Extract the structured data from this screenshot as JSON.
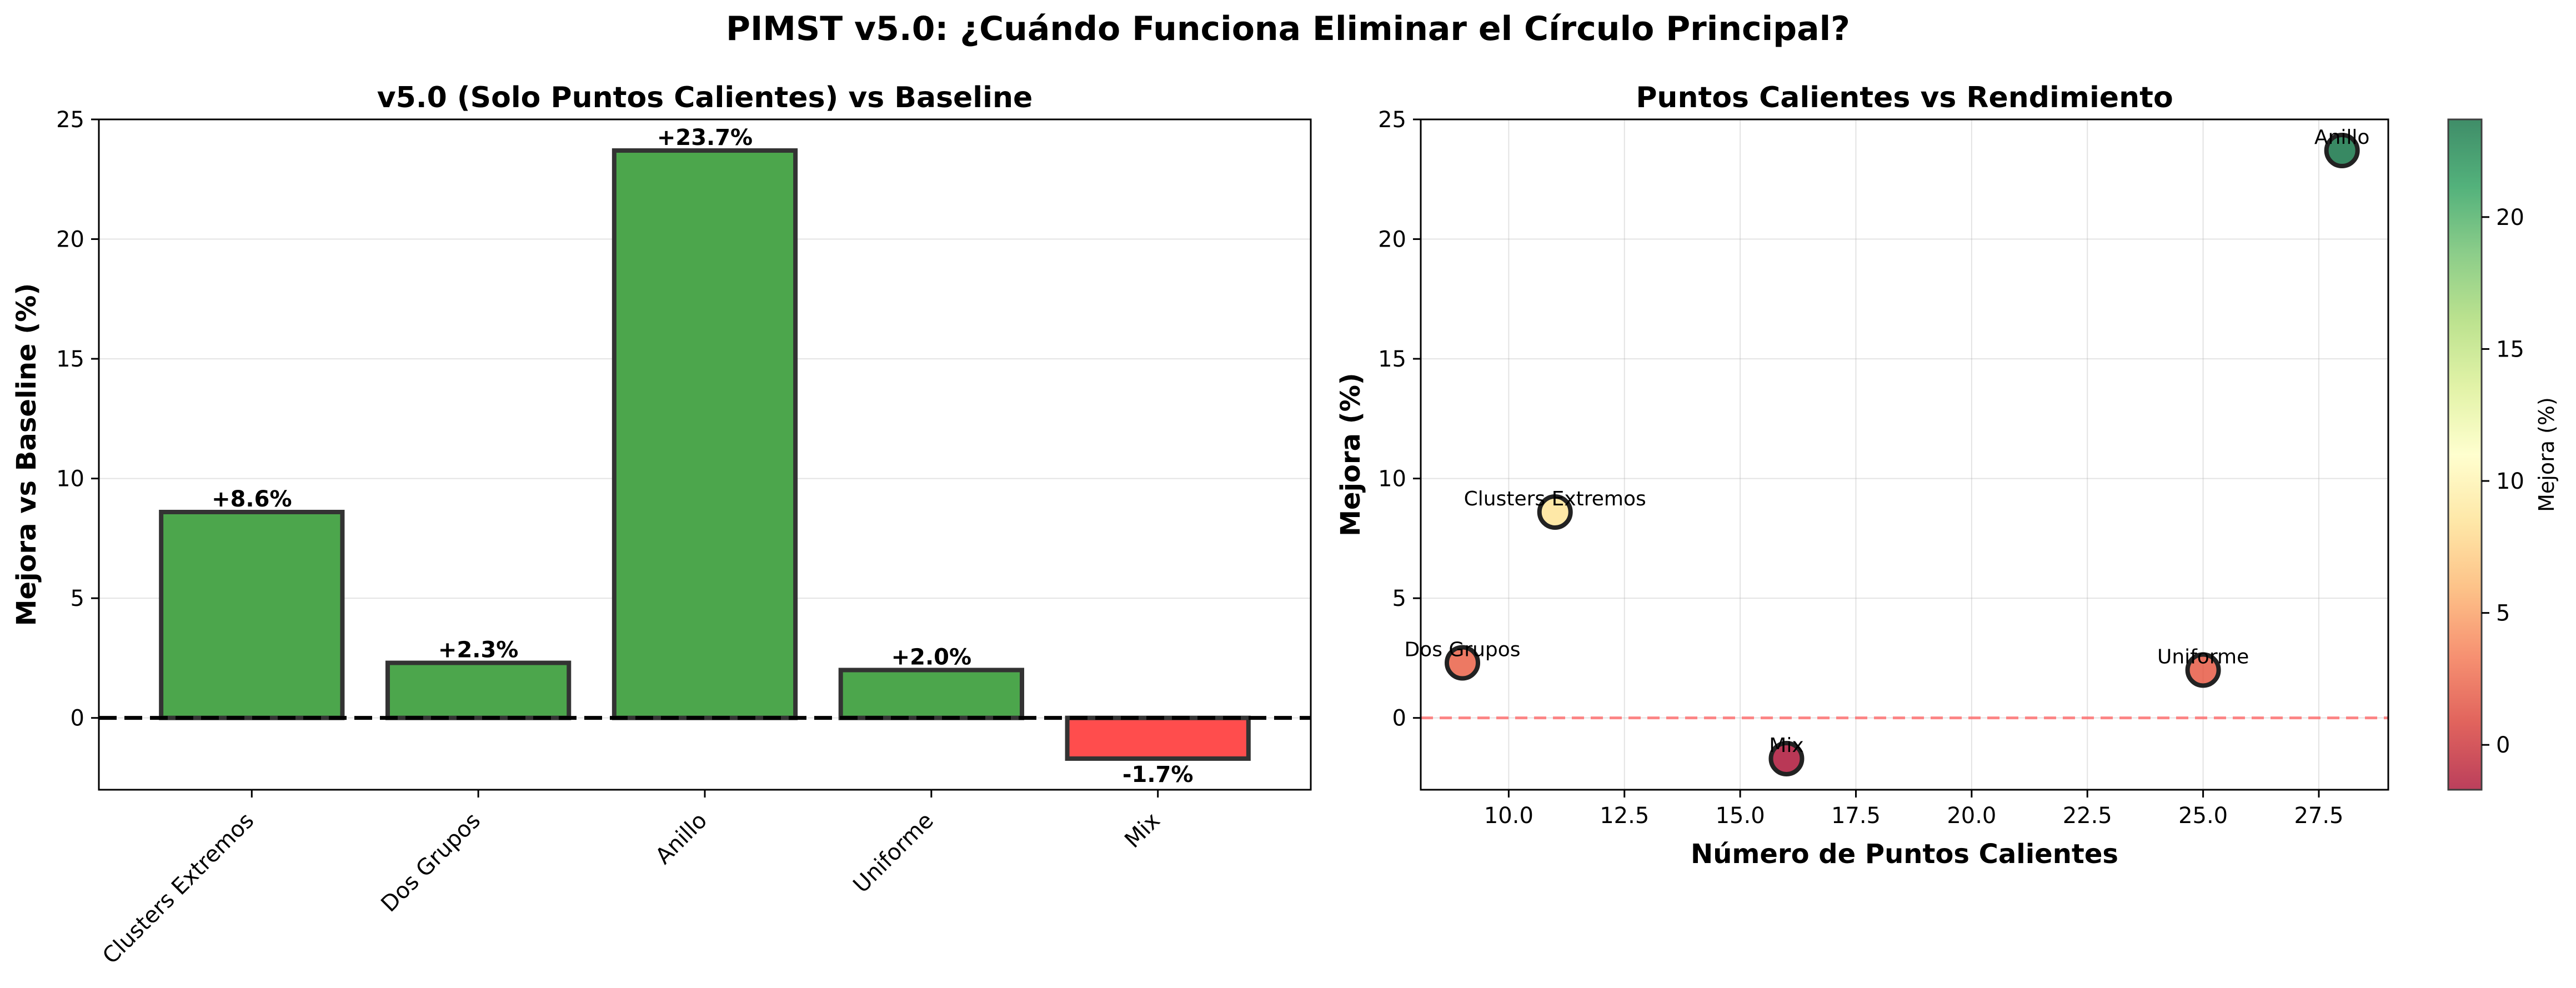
{
  "figure": {
    "suptitle": "PIMST v5.0: ¿Cuándo Funciona Eliminar el Círculo Principal?"
  },
  "chart_data": [
    {
      "type": "bar",
      "title": "v5.0 (Solo Puntos Calientes) vs Baseline",
      "xlabel": "",
      "ylabel": "Mejora vs Baseline (%)",
      "categories": [
        "Clusters Extremos",
        "Dos Grupos",
        "Anillo",
        "Uniforme",
        "Mix"
      ],
      "values": [
        8.6,
        2.3,
        23.7,
        2.0,
        -1.7
      ],
      "value_labels": [
        "+8.6%",
        "+2.3%",
        "+23.7%",
        "+2.0%",
        "-1.7%"
      ],
      "ylim": [
        -3,
        25
      ],
      "yticks": [
        0,
        5,
        10,
        15,
        20,
        25
      ],
      "ytick_labels": [
        "0",
        "5",
        "10",
        "15",
        "20",
        "25"
      ],
      "grid": true,
      "baseline": 0,
      "colors": {
        "positive": "#4ca64c",
        "negative": "#ff4d4d",
        "edge": "#333333"
      }
    },
    {
      "type": "scatter",
      "title": "Puntos Calientes vs Rendimiento",
      "xlabel": "Número de Puntos Calientes",
      "ylabel": "Mejora (%)",
      "points": [
        {
          "x": 11,
          "y": 8.6,
          "label": "Clusters Extremos"
        },
        {
          "x": 9,
          "y": 2.3,
          "label": "Dos Grupos"
        },
        {
          "x": 28,
          "y": 23.7,
          "label": "Anillo"
        },
        {
          "x": 25,
          "y": 2.0,
          "label": "Uniforme"
        },
        {
          "x": 16,
          "y": -1.7,
          "label": "Mix"
        }
      ],
      "xlim": [
        8.1,
        29.0
      ],
      "ylim": [
        -3,
        25
      ],
      "xticks": [
        10.0,
        12.5,
        15.0,
        17.5,
        20.0,
        22.5,
        25.0,
        27.5
      ],
      "xtick_labels": [
        "10.0",
        "12.5",
        "15.0",
        "17.5",
        "20.0",
        "22.5",
        "25.0",
        "27.5"
      ],
      "yticks": [
        0,
        5,
        10,
        15,
        20,
        25
      ],
      "ytick_labels": [
        "0",
        "5",
        "10",
        "15",
        "20",
        "25"
      ],
      "grid": true,
      "reference_line": {
        "y": 0,
        "color": "#ff6b6b",
        "style": "dashed"
      },
      "colorbar": {
        "label": "Mejora (%)",
        "colormap": "RdYlGn",
        "range": [
          -1.7,
          23.7
        ],
        "ticks": [
          0,
          5,
          10,
          15,
          20
        ],
        "tick_labels": [
          "0",
          "5",
          "10",
          "15",
          "20"
        ]
      }
    }
  ]
}
